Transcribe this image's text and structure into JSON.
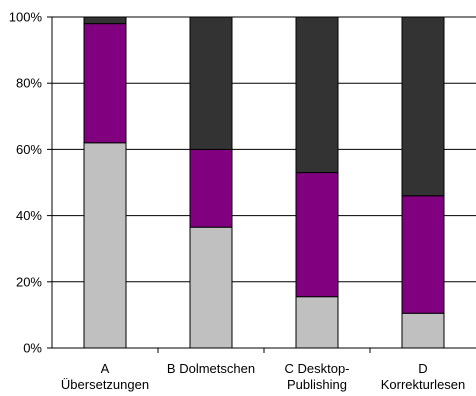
{
  "chart_data": {
    "type": "bar",
    "stacked": true,
    "percent": true,
    "categories": [
      [
        "A",
        "Übersetzungen"
      ],
      [
        "B Dolmetschen"
      ],
      [
        "C Desktop-",
        "Publishing"
      ],
      [
        "D",
        "Korrekturlesen"
      ]
    ],
    "series": [
      {
        "color": "#c0c0c0",
        "values": [
          62,
          36.5,
          15.5,
          10.5
        ]
      },
      {
        "color": "#800080",
        "values": [
          36,
          23.5,
          37.5,
          35.5
        ]
      },
      {
        "color": "#333333",
        "values": [
          2,
          40,
          47,
          54
        ]
      }
    ],
    "y_ticks": [
      "0%",
      "20%",
      "40%",
      "60%",
      "80%",
      "100%"
    ],
    "ylim": [
      0,
      100
    ],
    "grid": true,
    "legend": "none",
    "title": "",
    "xlabel": "",
    "ylabel": ""
  }
}
